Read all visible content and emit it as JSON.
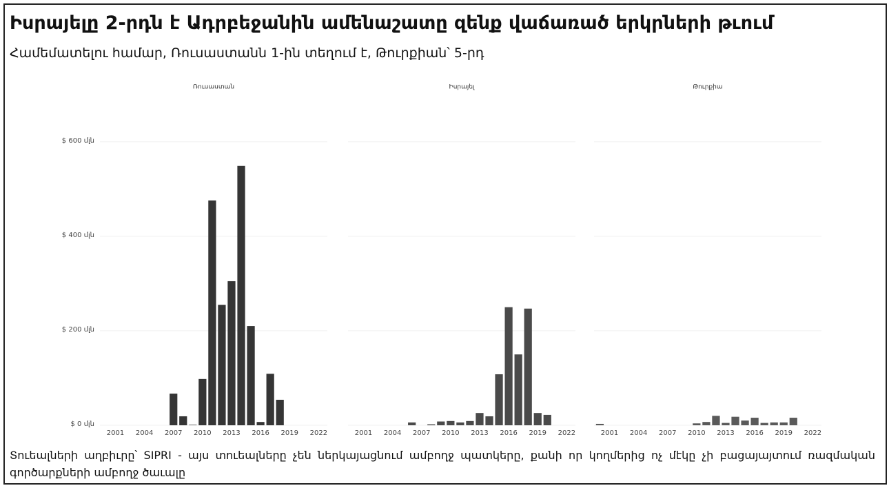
{
  "title": "Իսրայելը 2-րդն է Ադրբեջանին ամենաշատը զենք վաճառած երկրների թւում",
  "subtitle": "Համեմատելու համար, Ռուսաստանն 1-ին տեղում է, Թուրքիան՝ 5-րդ",
  "source": "Տուեալների աղբիւրը՝ SIPRI - այս տուեալները չեն ներկայացնում ամբողջ պատկերը, քանի որ կողմերից ոչ մէկը չի բացայայտում ռազմական գործարքների ամբողջ ծաւալը",
  "chart_data": [
    {
      "type": "bar",
      "title": "Ռուսաստան",
      "color": "#353535",
      "x": [
        2007,
        2008,
        2009,
        2010,
        2011,
        2012,
        2013,
        2014,
        2015,
        2016,
        2017,
        2018
      ],
      "values": [
        67,
        19,
        1,
        98,
        476,
        255,
        305,
        549,
        210,
        7,
        109,
        54
      ],
      "xlim": [
        1999.4,
        2022.9
      ],
      "xticks": [
        2001,
        2004,
        2007,
        2010,
        2013,
        2016,
        2019,
        2022
      ],
      "ylim": [
        0,
        696
      ],
      "yticks": [
        {
          "value": 0,
          "label": "$ 0 մլն"
        },
        {
          "value": 200,
          "label": "$ 200 մլն"
        },
        {
          "value": 400,
          "label": "$ 400 մլն"
        },
        {
          "value": 600,
          "label": "$ 600 մլն"
        }
      ],
      "grid": true
    },
    {
      "type": "bar",
      "title": "Իսրայել",
      "color": "#4a4a4a",
      "x": [
        2006,
        2008,
        2009,
        2010,
        2011,
        2012,
        2013,
        2014,
        2015,
        2016,
        2017,
        2018,
        2019,
        2020
      ],
      "values": [
        6,
        2,
        8,
        9,
        6,
        9,
        26,
        19,
        108,
        250,
        150,
        247,
        26,
        22
      ],
      "xlim": [
        1999.4,
        2022.9
      ],
      "xticks": [
        2001,
        2004,
        2007,
        2010,
        2013,
        2016,
        2019,
        2022
      ],
      "ylim": [
        0,
        696
      ],
      "grid": true
    },
    {
      "type": "bar",
      "title": "Թուրքիա",
      "color": "#5a5a5a",
      "x": [
        2000,
        2010,
        2011,
        2012,
        2013,
        2014,
        2015,
        2016,
        2017,
        2018,
        2019,
        2020
      ],
      "values": [
        3,
        4,
        7,
        20,
        5,
        18,
        10,
        16,
        5,
        6,
        6,
        16
      ],
      "xlim": [
        1999.4,
        2022.9
      ],
      "xticks": [
        2001,
        2004,
        2007,
        2010,
        2013,
        2016,
        2019,
        2022
      ],
      "ylim": [
        0,
        696
      ],
      "grid": true
    }
  ]
}
